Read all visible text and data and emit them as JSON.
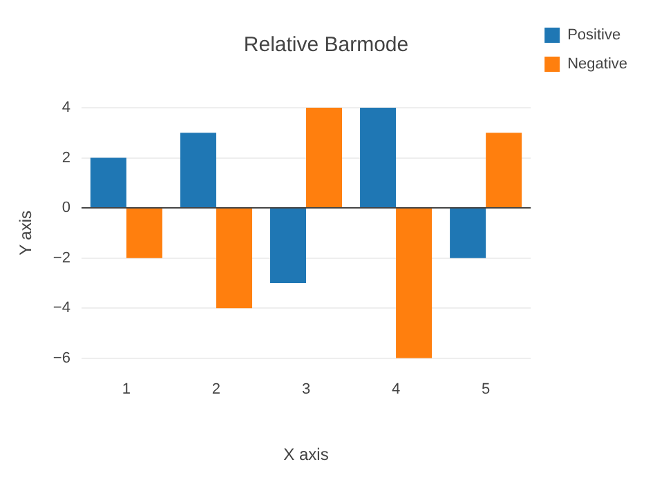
{
  "chart_data": {
    "type": "bar",
    "title": "Relative Barmode",
    "xlabel": "X axis",
    "ylabel": "Y axis",
    "categories": [
      "1",
      "2",
      "3",
      "4",
      "5"
    ],
    "series": [
      {
        "name": "Positive",
        "color": "#1f77b4",
        "values": [
          2,
          3,
          -3,
          4,
          -2
        ]
      },
      {
        "name": "Negative",
        "color": "#ff7f0e",
        "values": [
          -2,
          -4,
          4,
          -6,
          3
        ]
      }
    ],
    "ylim": [
      -6,
      4
    ],
    "yticks": [
      -6,
      -4,
      -2,
      0,
      2,
      4
    ],
    "grid": "y",
    "legend": "top right"
  }
}
